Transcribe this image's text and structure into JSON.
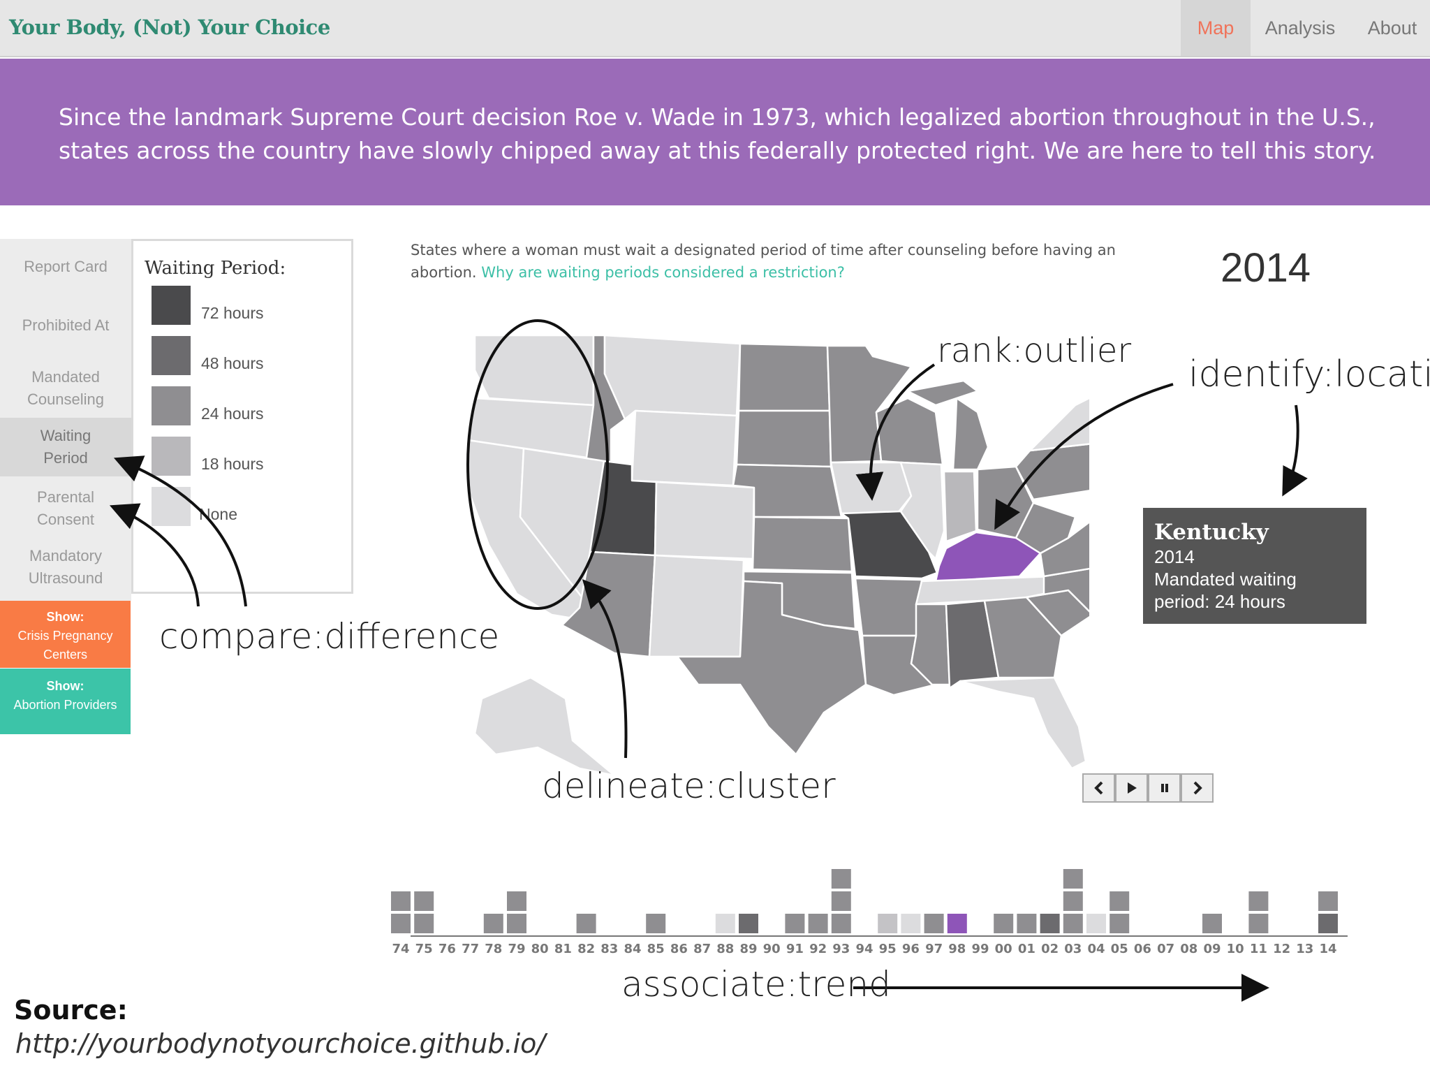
{
  "header": {
    "brand": "Your Body, (Not) Your Choice",
    "tabs": [
      {
        "label": "Map",
        "active": true
      },
      {
        "label": "Analysis",
        "active": false
      },
      {
        "label": "About",
        "active": false
      }
    ]
  },
  "banner": {
    "text": "Since the landmark Supreme Court decision Roe v. Wade in 1973, which legalized abortion throughout in the U.S., states across the country have slowly chipped away at this federally protected right. We are here to tell this story."
  },
  "sidebar": {
    "items": [
      {
        "label": "Report Card"
      },
      {
        "label": "Prohibited At"
      },
      {
        "label": "Mandated Counseling"
      },
      {
        "label": "Waiting Period",
        "active": true
      },
      {
        "label": "Parental Consent"
      },
      {
        "label": "Mandatory Ultrasound"
      }
    ],
    "show_crisis": {
      "strong": "Show:",
      "label": "Crisis Pregnancy Centers",
      "color": "#f97b45"
    },
    "show_providers": {
      "strong": "Show:",
      "label": "Abortion Providers",
      "color": "#3cc4a8"
    }
  },
  "legend": {
    "title": "Waiting Period:",
    "items": [
      {
        "label": "72 hours",
        "color": "#4a4a4c"
      },
      {
        "label": "48 hours",
        "color": "#6c6b6e"
      },
      {
        "label": "24 hours",
        "color": "#8f8e91"
      },
      {
        "label": "18 hours",
        "color": "#b9b8bb"
      },
      {
        "label": "None",
        "color": "#dcdcde"
      }
    ]
  },
  "description": {
    "text": "States where a woman must wait a designated period of time after counseling before having an abortion.",
    "link": "Why are waiting periods considered a restriction?"
  },
  "map": {
    "year": "2014",
    "highlight_color": "#8e55b8"
  },
  "tooltip": {
    "state": "Kentucky",
    "year": "2014",
    "line1": "Mandated waiting",
    "line2": "period: 24 hours"
  },
  "controls": [
    {
      "icon": "chevron-left-icon"
    },
    {
      "icon": "play-icon"
    },
    {
      "icon": "pause-icon"
    },
    {
      "icon": "chevron-right-icon"
    }
  ],
  "timeline": {
    "labels": [
      "74",
      "75",
      "76",
      "77",
      "78",
      "79",
      "80",
      "81",
      "82",
      "83",
      "84",
      "85",
      "86",
      "87",
      "88",
      "89",
      "90",
      "91",
      "92",
      "93",
      "94",
      "95",
      "96",
      "97",
      "98",
      "99",
      "00",
      "01",
      "02",
      "03",
      "04",
      "05",
      "06",
      "07",
      "08",
      "09",
      "10",
      "11",
      "12",
      "13",
      "14"
    ],
    "stacks": [
      [
        "#8f8e91",
        "#8f8e91"
      ],
      [
        "#8f8e91",
        "#8f8e91"
      ],
      [],
      [],
      [
        "#8f8e91"
      ],
      [
        "#8f8e91",
        "#8f8e91"
      ],
      [],
      [],
      [
        "#8f8e91"
      ],
      [],
      [],
      [
        "#8f8e91"
      ],
      [],
      [],
      [
        "#dcdcde"
      ],
      [
        "#6c6b6e"
      ],
      [],
      [
        "#8f8e91"
      ],
      [
        "#8f8e91"
      ],
      [
        "#8f8e91",
        "#8f8e91",
        "#8f8e91"
      ],
      [],
      [
        "#c4c3c6"
      ],
      [
        "#dcdcde"
      ],
      [
        "#8f8e91"
      ],
      [
        "#8e55b8"
      ],
      [],
      [
        "#8f8e91"
      ],
      [
        "#8f8e91"
      ],
      [
        "#6c6b6e"
      ],
      [
        "#8f8e91",
        "#8f8e91",
        "#8f8e91"
      ],
      [
        "#dcdcde"
      ],
      [
        "#8f8e91",
        "#8f8e91"
      ],
      [],
      [],
      [],
      [
        "#8f8e91"
      ],
      [],
      [
        "#8f8e91",
        "#8f8e91"
      ],
      [],
      [],
      [
        "#6c6b6e",
        "#8f8e91"
      ]
    ]
  },
  "annotations": {
    "rank": "rank:outlier",
    "identify": "identify:location",
    "compare": "compare:difference",
    "delineate": "delineate:cluster",
    "associate": "associate:trend"
  },
  "source": {
    "label": "Source:",
    "url": "http://yourbodynotyourchoice.github.io/"
  }
}
